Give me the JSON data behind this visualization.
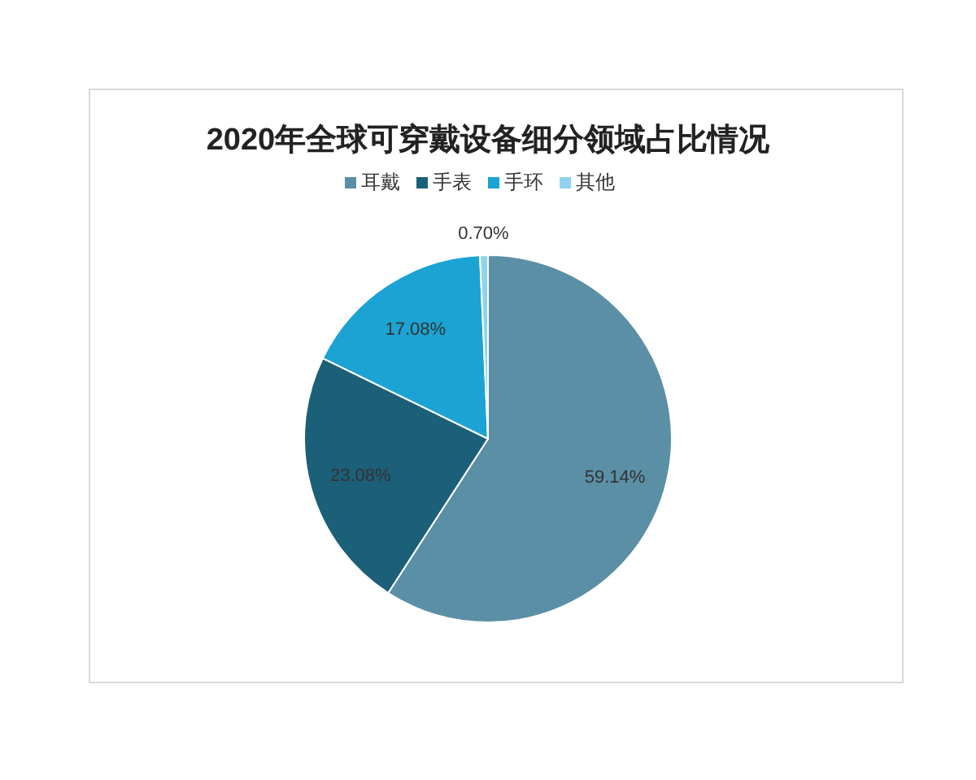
{
  "chart_data": {
    "type": "pie",
    "title": "2020年全球可穿戴设备细分领域占比情况",
    "categories": [
      "耳戴",
      "手表",
      "手环",
      "其他"
    ],
    "values": [
      59.14,
      23.08,
      17.08,
      0.7
    ],
    "colors": [
      "#5b8fa6",
      "#1c5f78",
      "#1ba3d4",
      "#8fd3ee"
    ],
    "value_labels": [
      "59.14%",
      "23.08%",
      "17.08%",
      "0.70%"
    ],
    "legend": "top"
  }
}
